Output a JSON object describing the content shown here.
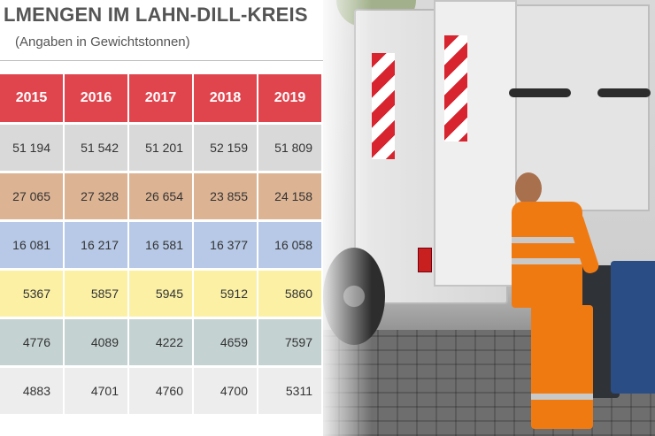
{
  "header": {
    "title": "LMENGEN IM LAHN-DILL-KREIS",
    "subtitle": "(Angaben in Gewichtstonnen)"
  },
  "colors": {
    "header_row": "#e0454e",
    "row_backgrounds": [
      "#d9d9d9",
      "#dcb393",
      "#b7c9e6",
      "#fbf0a4",
      "#c5d2d2",
      "#ededed"
    ]
  },
  "photo": {
    "icons": [
      "garbage-truck-icon",
      "sanitation-worker-icon",
      "waste-bin-icon"
    ]
  },
  "chart_data": {
    "type": "table",
    "title": "LMENGEN IM LAHN-DILL-KREIS",
    "subtitle": "(Angaben in Gewichtstonnen)",
    "columns": [
      "2015",
      "2016",
      "2017",
      "2018",
      "2019"
    ],
    "rows": [
      [
        "51 194",
        "51 542",
        "51 201",
        "52 159",
        "51 809"
      ],
      [
        "27 065",
        "27 328",
        "26 654",
        "23 855",
        "24 158"
      ],
      [
        "16 081",
        "16 217",
        "16 581",
        "16 377",
        "16 058"
      ],
      [
        "5367",
        "5857",
        "5945",
        "5912",
        "5860"
      ],
      [
        "4776",
        "4089",
        "4222",
        "4659",
        "7597"
      ],
      [
        "4883",
        "4701",
        "4760",
        "4700",
        "5311"
      ]
    ]
  }
}
